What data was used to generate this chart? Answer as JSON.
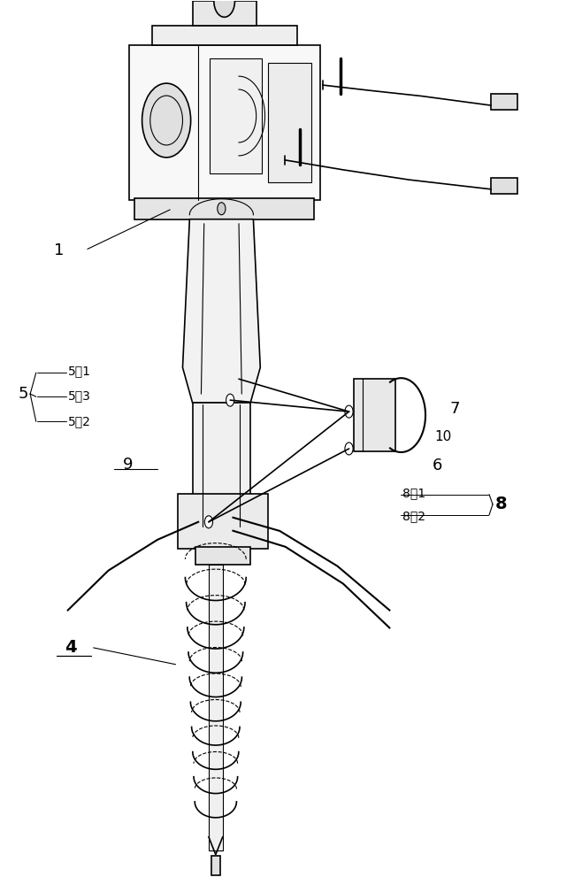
{
  "bg_color": "#ffffff",
  "line_color": "#000000",
  "fig_width": 6.58,
  "fig_height": 10.0,
  "dpi": 100,
  "labels": {
    "1": [
      0.1,
      0.72,
      "1"
    ],
    "4": [
      0.12,
      0.27,
      "4"
    ],
    "5": [
      0.04,
      0.555,
      "5"
    ],
    "5.1": [
      0.17,
      0.579,
      "5．1"
    ],
    "5.2": [
      0.17,
      0.525,
      "5．2"
    ],
    "5.3": [
      0.17,
      0.552,
      "5．3"
    ],
    "6": [
      0.75,
      0.472,
      "6"
    ],
    "7": [
      0.78,
      0.535,
      "7"
    ],
    "8": [
      0.86,
      0.43,
      "8"
    ],
    "8.1": [
      0.73,
      0.443,
      "8．1"
    ],
    "8.2": [
      0.73,
      0.415,
      "8．2"
    ],
    "9": [
      0.22,
      0.475,
      "9"
    ],
    "10": [
      0.76,
      0.505,
      "10"
    ]
  }
}
